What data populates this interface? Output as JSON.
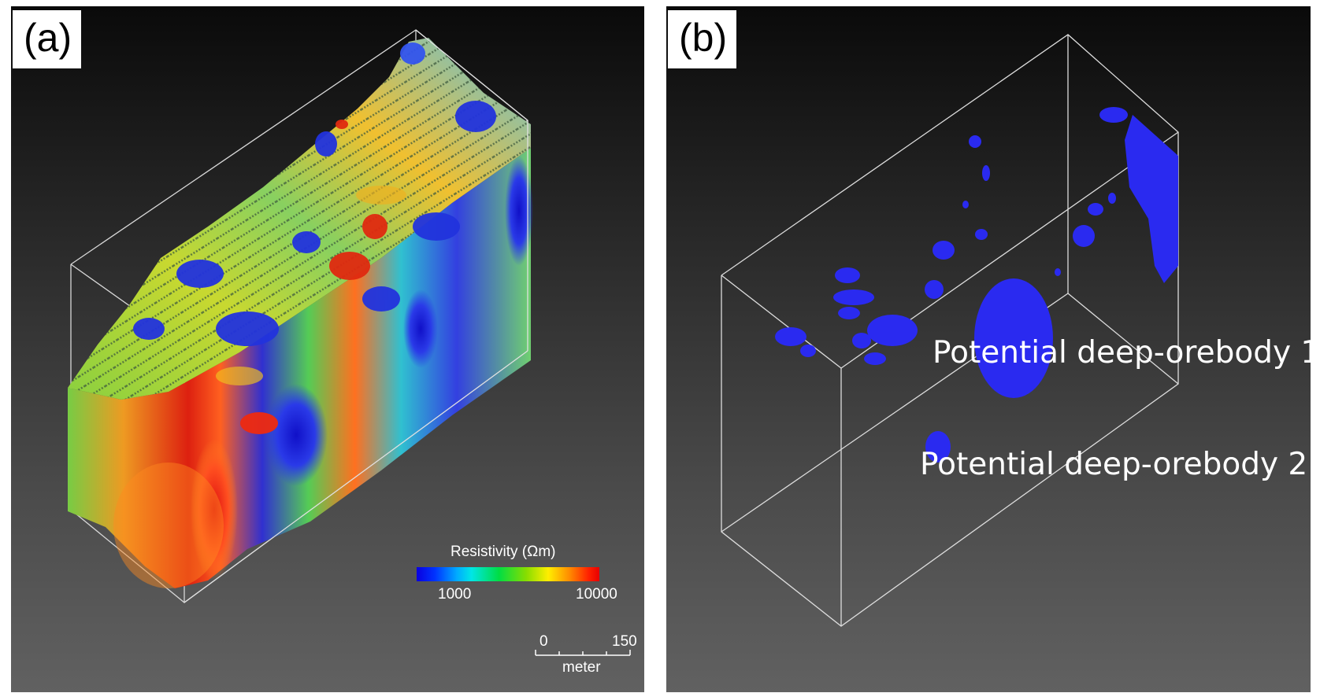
{
  "panel_a": {
    "label": "(a)",
    "colorbar": {
      "title": "Resistivity (Ωm)",
      "min_label": "1000",
      "max_label": "10000"
    },
    "scale_bar": {
      "min_label": "0",
      "max_label": "150",
      "unit": "meter"
    }
  },
  "panel_b": {
    "label": "(b)",
    "annotations": {
      "orebody_1": "Potential deep-orebody 1",
      "orebody_2": "Potential deep-orebody 2"
    },
    "orebody_color": "#2a2af0"
  },
  "colors": {
    "background_top": "#0a0a0a",
    "background_bottom": "#616161",
    "frame": "#e0e0e0"
  }
}
